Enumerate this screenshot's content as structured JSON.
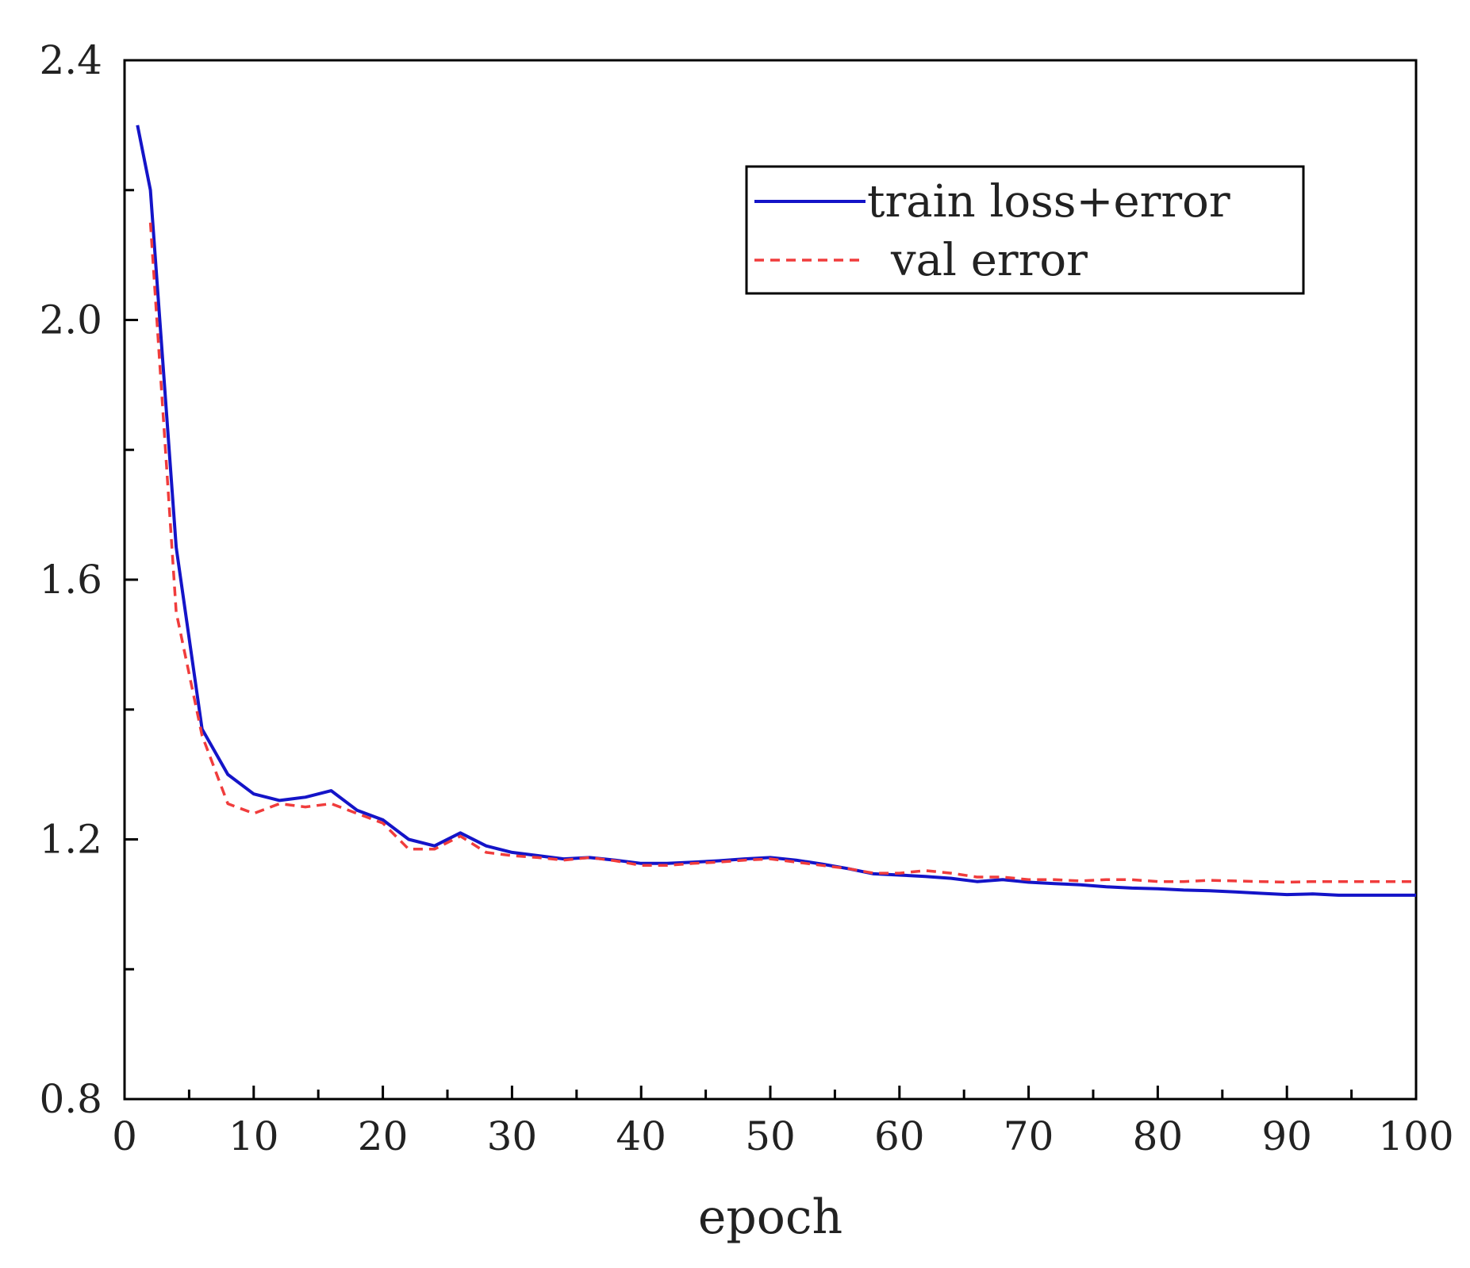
{
  "chart_data": {
    "type": "line",
    "title": "",
    "xlabel": "epoch",
    "ylabel": "",
    "xlim": [
      0,
      100
    ],
    "ylim": [
      0.8,
      2.4
    ],
    "x_ticks": [
      0,
      10,
      20,
      30,
      40,
      50,
      60,
      70,
      80,
      90,
      100
    ],
    "x_tick_labels": [
      "0",
      "10",
      "20",
      "30",
      "40",
      "50",
      "60",
      "70",
      "80",
      "90",
      "100"
    ],
    "x_minor_ticks": [
      5,
      15,
      25,
      35,
      45,
      55,
      65,
      75,
      85,
      95
    ],
    "y_ticks": [
      0.8,
      1.2,
      1.6,
      2.0,
      2.4
    ],
    "y_tick_labels": [
      "0.8",
      "1.2",
      "1.6",
      "2.0",
      "2.4"
    ],
    "y_minor_ticks": [
      1.0,
      1.4,
      1.8,
      2.2
    ],
    "grid": false,
    "legend_position": "top-right",
    "series": [
      {
        "name": "train loss+error",
        "color": "#1414c8",
        "style": "solid",
        "x": [
          1,
          2,
          4,
          6,
          8,
          10,
          12,
          14,
          16,
          18,
          20,
          22,
          24,
          26,
          28,
          30,
          32,
          34,
          36,
          38,
          40,
          42,
          44,
          46,
          48,
          50,
          52,
          54,
          56,
          58,
          60,
          62,
          64,
          66,
          68,
          70,
          72,
          74,
          76,
          78,
          80,
          82,
          84,
          86,
          88,
          90,
          92,
          94,
          96,
          98,
          100
        ],
        "values": [
          2.3,
          2.2,
          1.65,
          1.37,
          1.3,
          1.27,
          1.26,
          1.265,
          1.275,
          1.245,
          1.23,
          1.2,
          1.19,
          1.21,
          1.19,
          1.18,
          1.175,
          1.17,
          1.172,
          1.168,
          1.163,
          1.163,
          1.165,
          1.167,
          1.17,
          1.172,
          1.168,
          1.162,
          1.155,
          1.147,
          1.145,
          1.143,
          1.14,
          1.135,
          1.138,
          1.134,
          1.132,
          1.13,
          1.127,
          1.125,
          1.124,
          1.122,
          1.121,
          1.119,
          1.117,
          1.115,
          1.116,
          1.114,
          1.114,
          1.114,
          1.114
        ]
      },
      {
        "name": "val error",
        "color": "#f03c3c",
        "style": "dashed",
        "x": [
          2,
          4,
          6,
          8,
          10,
          12,
          14,
          16,
          18,
          20,
          22,
          24,
          26,
          28,
          30,
          32,
          34,
          36,
          38,
          40,
          42,
          44,
          46,
          48,
          50,
          52,
          54,
          56,
          58,
          60,
          62,
          64,
          66,
          68,
          70,
          72,
          74,
          76,
          78,
          80,
          82,
          84,
          86,
          88,
          90,
          92,
          94,
          96,
          98,
          100
        ],
        "values": [
          2.15,
          1.55,
          1.36,
          1.255,
          1.24,
          1.255,
          1.25,
          1.255,
          1.24,
          1.225,
          1.185,
          1.185,
          1.205,
          1.18,
          1.175,
          1.172,
          1.168,
          1.172,
          1.167,
          1.16,
          1.16,
          1.163,
          1.165,
          1.168,
          1.17,
          1.165,
          1.16,
          1.155,
          1.148,
          1.148,
          1.152,
          1.148,
          1.142,
          1.142,
          1.138,
          1.138,
          1.136,
          1.138,
          1.138,
          1.135,
          1.135,
          1.137,
          1.136,
          1.135,
          1.134,
          1.135,
          1.135,
          1.135,
          1.135,
          1.135
        ]
      }
    ]
  }
}
